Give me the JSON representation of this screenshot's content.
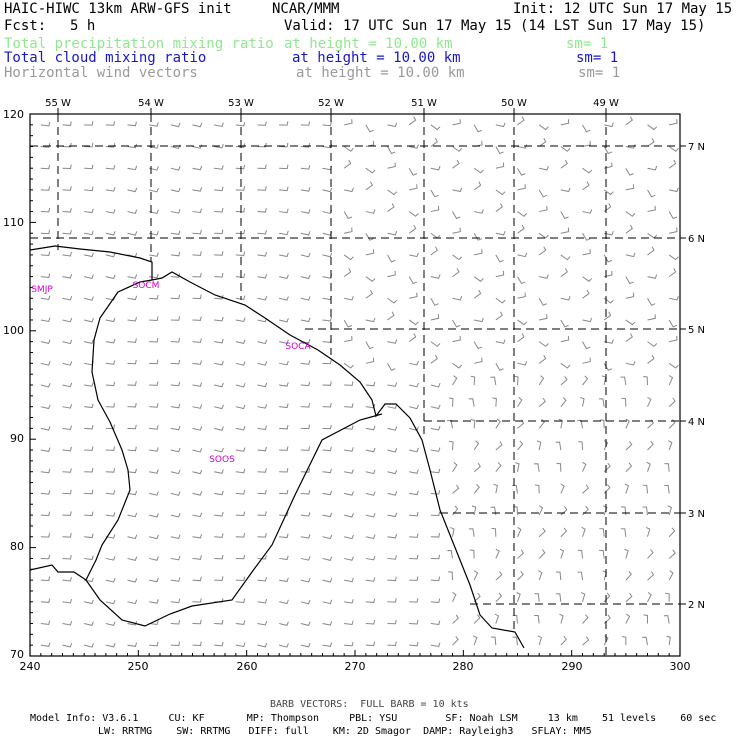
{
  "header": {
    "title": "HAIC-HIWC 13km ARW-GFS init",
    "center": "NCAR/MMM",
    "init": "Init: 12 UTC Sun 17 May 15",
    "fcst_label": "Fcst:",
    "fcst_value": "5 h",
    "valid": "Valid: 17 UTC Sun 17 May 15 (14 LST Sun 17 May 15)",
    "fields": [
      {
        "name": "Total precipitation mixing ratio",
        "height": "at height = 10.00 km",
        "sm": "sm= 1",
        "color": "#8fe88f"
      },
      {
        "name": "Total cloud mixing ratio",
        "height": "at height = 10.00 km",
        "sm": "sm= 1",
        "color": "#1818c8"
      },
      {
        "name": "Horizontal wind vectors",
        "height": "at height = 10.00 km",
        "sm": "sm= 1",
        "color": "#9a9a9a"
      }
    ]
  },
  "map": {
    "lon_labels": [
      "55 W",
      "54 W",
      "53 W",
      "52 W",
      "51 W",
      "50 W",
      "49 W"
    ],
    "lat_labels": [
      "7 N",
      "6 N",
      "5 N",
      "4 N",
      "3 N",
      "2 N"
    ],
    "left_axis": [
      "120",
      "110",
      "100",
      "90",
      "80",
      "70"
    ],
    "bottom_axis": [
      "240",
      "250",
      "260",
      "270",
      "280",
      "290",
      "300"
    ],
    "stations": [
      {
        "id": "SMJP",
        "color": "#cc00cc"
      },
      {
        "id": "SOCM",
        "color": "#cc00cc"
      },
      {
        "id": "SOCA",
        "color": "#cc00cc"
      },
      {
        "id": "SOOS",
        "color": "#cc00cc"
      }
    ]
  },
  "footer": {
    "barb_note": "BARB VECTORS:  FULL BARB = 10 kts",
    "model_line1": "Model Info: V3.6.1     CU: KF       MP: Thompson     PBL: YSU        SF: Noah LSM     13 km    51 levels    60 sec",
    "model_line2": "LW: RRTMG    SW: RRTMG   DIFF: full    KM: 2D Smagor  DAMP: Rayleigh3   SFLAY: MM5"
  }
}
